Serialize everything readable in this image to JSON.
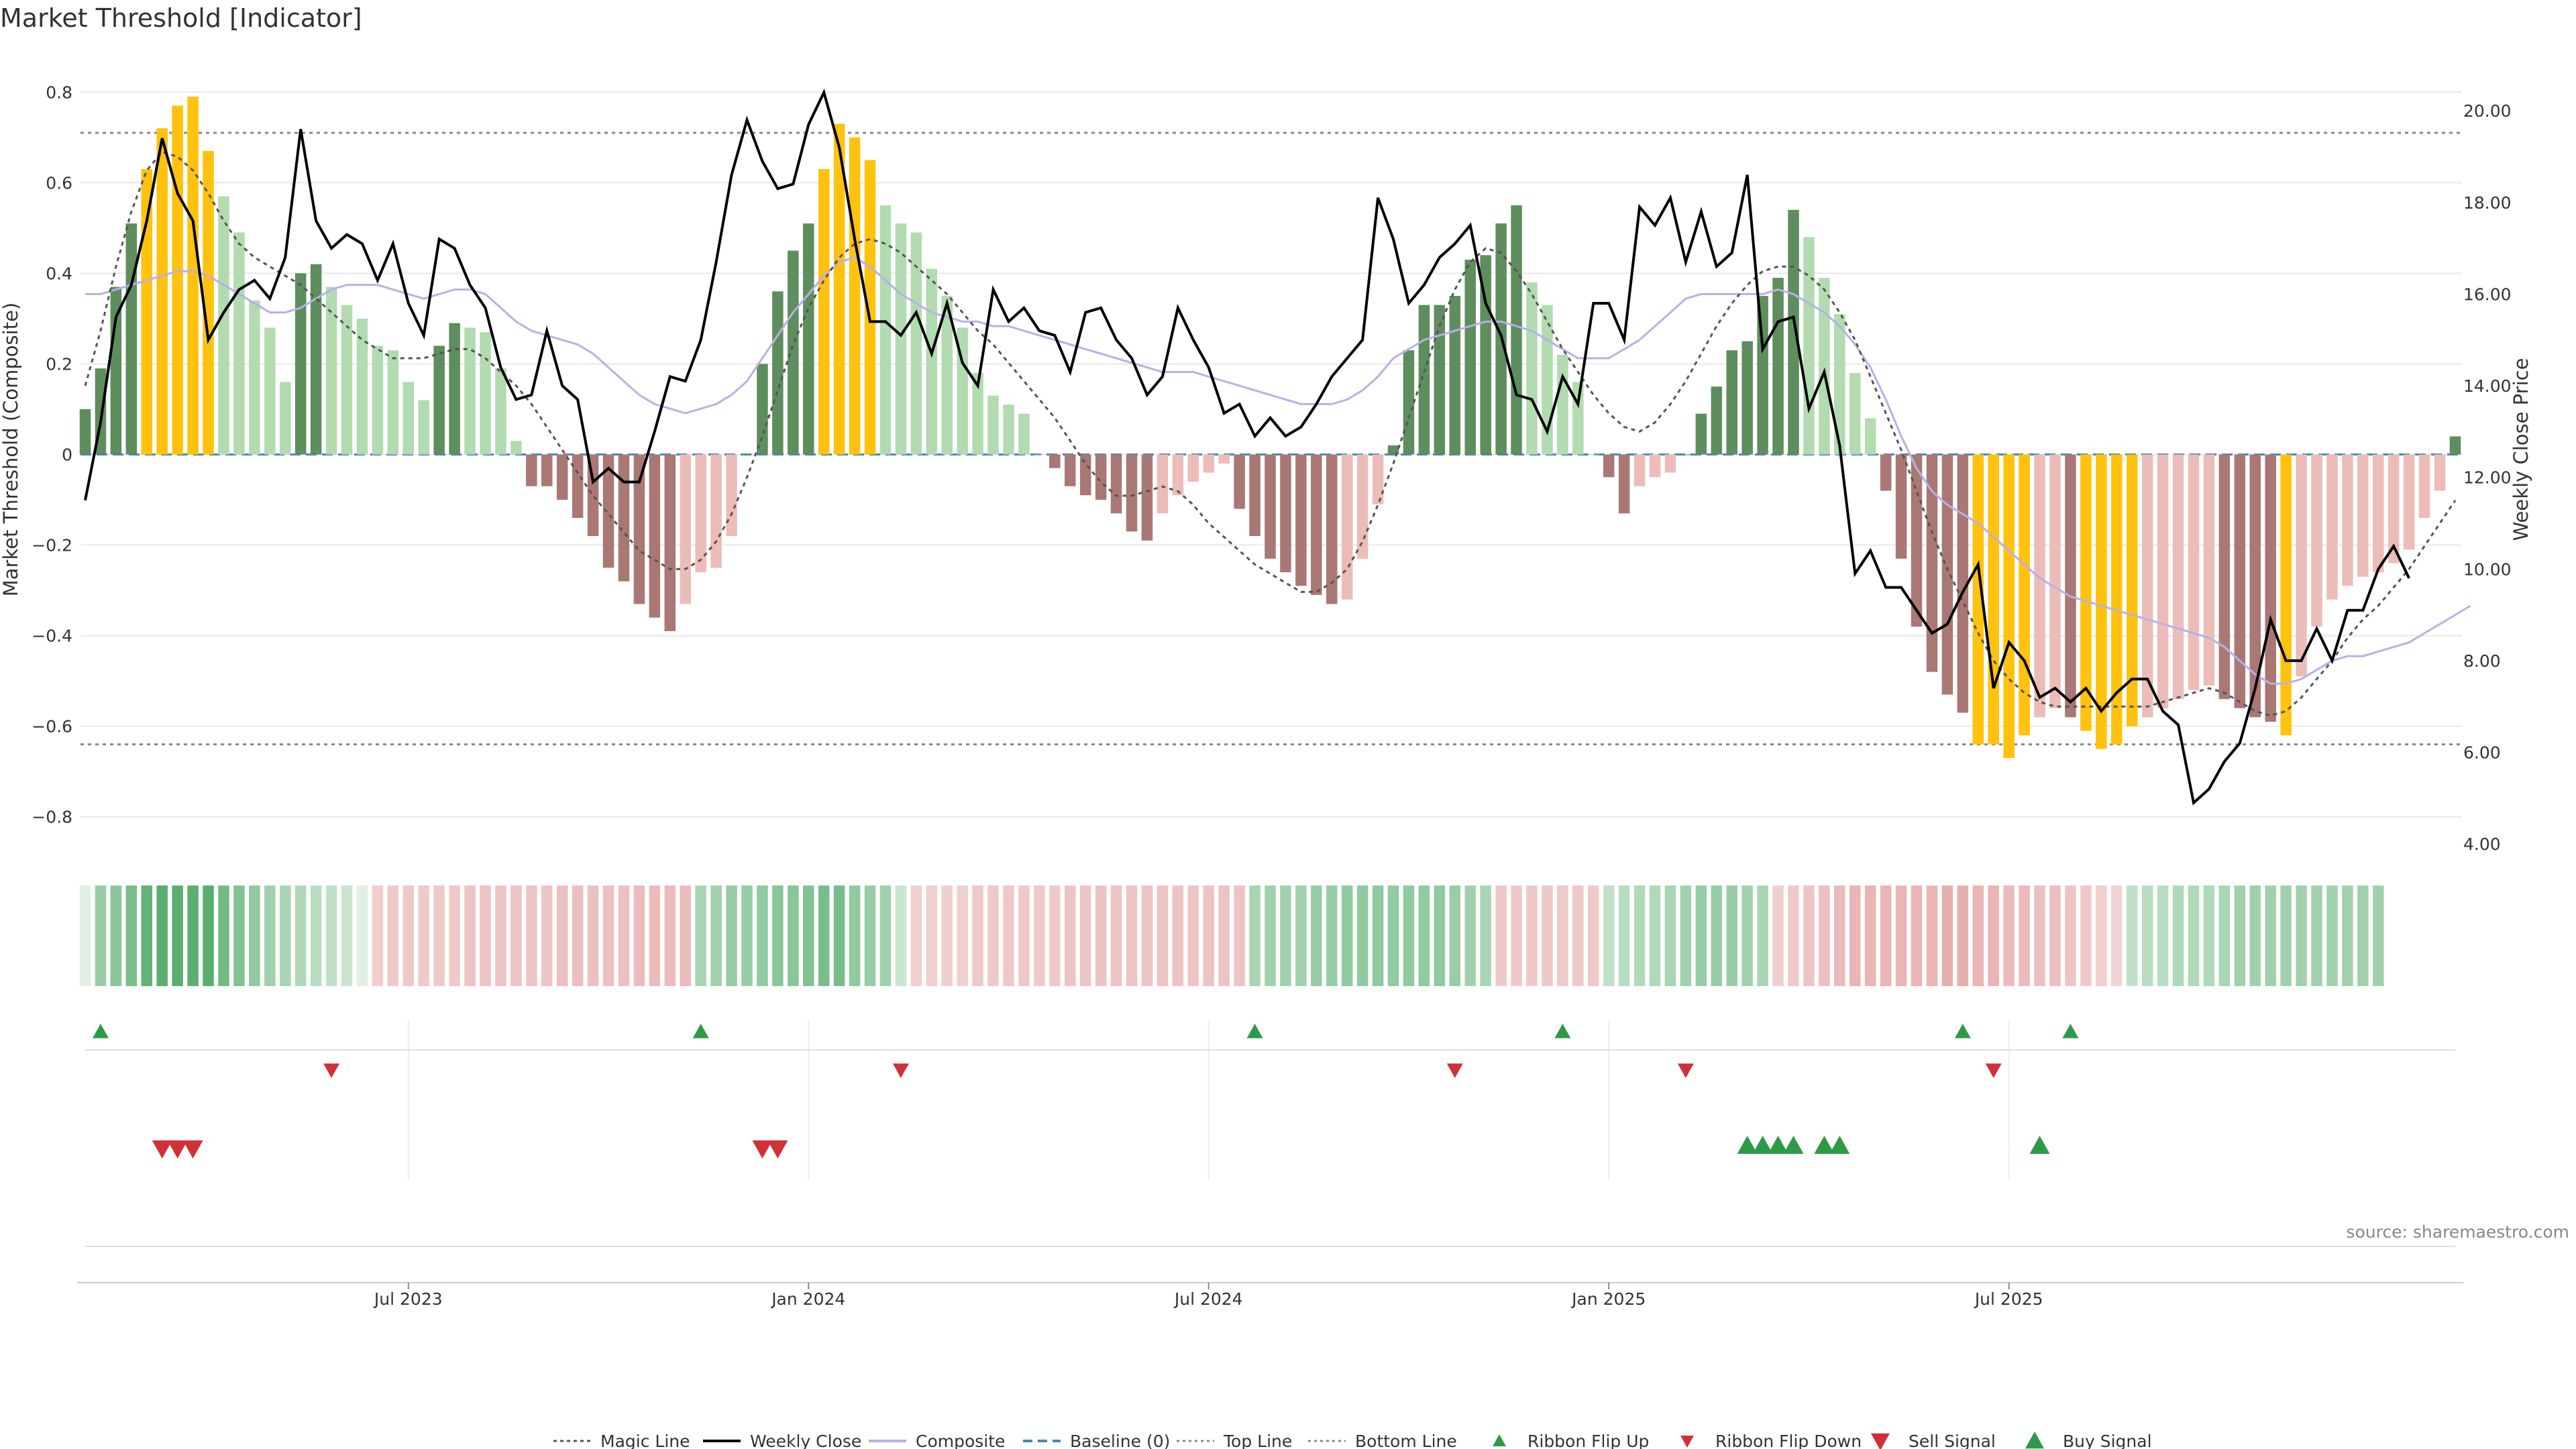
{
  "chart_data": {
    "type": "bar",
    "title": "Market Threshold [Indicator]",
    "ylabel_left": "Market Threshold (Composite)",
    "ylabel_right": "Weekly Close Price",
    "source_text": "source: sharemaestro.com",
    "left_ylim": [
      -0.87,
      0.87
    ],
    "right_ylim": [
      3.9,
      21.1
    ],
    "left_ticks": [
      "0.8",
      "0.6",
      "0.4",
      "0.2",
      "0",
      "−0.2",
      "−0.4",
      "−0.6",
      "−0.8"
    ],
    "right_ticks": [
      "20.00",
      "18.00",
      "16.00",
      "14.00",
      "12.00",
      "10.00",
      "8.00",
      "6.00",
      "4.00"
    ],
    "x_ticks": [
      {
        "label": "Jul 2023",
        "week": 21
      },
      {
        "label": "Jan 2024",
        "week": 47
      },
      {
        "label": "Jul 2024",
        "week": 73
      },
      {
        "label": "Jan 2025",
        "week": 99
      },
      {
        "label": "Jul 2025",
        "week": 125
      }
    ],
    "top_line": 0.71,
    "bottom_line": -0.64,
    "baseline": 0,
    "composite_values": [
      0.1,
      0.19,
      0.37,
      0.51,
      0.63,
      0.72,
      0.77,
      0.79,
      0.67,
      0.57,
      0.49,
      0.34,
      0.28,
      0.16,
      0.4,
      0.42,
      0.37,
      0.33,
      0.3,
      0.24,
      0.23,
      0.16,
      0.12,
      0.24,
      0.29,
      0.28,
      0.27,
      0.19,
      0.03,
      -0.07,
      -0.07,
      -0.1,
      -0.14,
      -0.18,
      -0.25,
      -0.28,
      -0.33,
      -0.36,
      -0.39,
      -0.33,
      -0.26,
      -0.25,
      -0.18,
      0.0,
      0.2,
      0.36,
      0.45,
      0.51,
      0.63,
      0.73,
      0.7,
      0.65,
      0.55,
      0.51,
      0.49,
      0.41,
      0.35,
      0.28,
      0.18,
      0.13,
      0.11,
      0.09,
      0.0,
      -0.03,
      -0.07,
      -0.09,
      -0.1,
      -0.13,
      -0.17,
      -0.19,
      -0.13,
      -0.09,
      -0.06,
      -0.04,
      -0.02,
      -0.12,
      -0.18,
      -0.23,
      -0.26,
      -0.29,
      -0.31,
      -0.33,
      -0.32,
      -0.23,
      -0.11,
      0.02,
      0.23,
      0.33,
      0.33,
      0.35,
      0.43,
      0.44,
      0.51,
      0.55,
      0.38,
      0.33,
      0.22,
      0.16,
      0.0,
      -0.05,
      -0.13,
      -0.07,
      -0.05,
      -0.04,
      0.0,
      0.09,
      0.15,
      0.23,
      0.25,
      0.35,
      0.39,
      0.54,
      0.48,
      0.39,
      0.31,
      0.18,
      0.08,
      -0.08,
      -0.23,
      -0.38,
      -0.48,
      -0.53,
      -0.57,
      -0.64,
      -0.64,
      -0.67,
      -0.62,
      -0.58,
      -0.56,
      -0.58,
      -0.61,
      -0.65,
      -0.64,
      -0.6,
      -0.58,
      -0.56,
      -0.54,
      -0.52,
      -0.51,
      -0.54,
      -0.56,
      -0.58,
      -0.59,
      -0.62,
      -0.49,
      -0.38,
      -0.32,
      -0.29,
      -0.27,
      -0.26,
      -0.24,
      -0.21,
      -0.14,
      -0.08,
      0.04
    ],
    "weekly_close": [
      11.5,
      13.2,
      15.5,
      16.2,
      17.6,
      19.4,
      18.2,
      17.6,
      15.0,
      15.6,
      16.1,
      16.3,
      15.9,
      16.8,
      19.6,
      17.6,
      17.0,
      17.3,
      17.1,
      16.3,
      17.1,
      15.8,
      15.1,
      17.2,
      17.0,
      16.2,
      15.7,
      14.4,
      13.7,
      13.8,
      15.2,
      14.0,
      13.7,
      11.9,
      12.2,
      11.9,
      11.9,
      13.0,
      14.2,
      14.1,
      15.0,
      16.7,
      18.6,
      19.8,
      18.9,
      18.3,
      18.4,
      19.7,
      20.4,
      19.2,
      17.2,
      15.4,
      15.4,
      15.1,
      15.6,
      14.7,
      15.8,
      14.5,
      14.0,
      16.1,
      15.4,
      15.7,
      15.2,
      15.1,
      14.3,
      15.6,
      15.7,
      15.0,
      14.6,
      13.8,
      14.2,
      15.7,
      15.0,
      14.4,
      13.4,
      13.6,
      12.9,
      13.3,
      12.9,
      13.1,
      13.6,
      14.2,
      14.6,
      15.0,
      18.1,
      17.2,
      15.8,
      16.2,
      16.8,
      17.1,
      17.5,
      15.8,
      15.1,
      13.8,
      13.7,
      13.0,
      14.2,
      13.6,
      15.8,
      15.8,
      15.0,
      17.9,
      17.5,
      18.1,
      16.7,
      17.8,
      16.6,
      16.9,
      18.6,
      14.8,
      15.4,
      15.5,
      13.5,
      14.3,
      12.7,
      9.9,
      10.4,
      9.6,
      9.6,
      9.1,
      8.6,
      8.8,
      9.5,
      10.1,
      7.4,
      8.4,
      8.0,
      7.2,
      7.4,
      7.1,
      7.4,
      6.9,
      7.3,
      7.6,
      7.6,
      6.9,
      6.6,
      4.9,
      5.2,
      5.8,
      6.2,
      7.4,
      8.9,
      8.0,
      8.0,
      8.7,
      8.0,
      9.1,
      9.1,
      10.0,
      10.5,
      9.8
    ],
    "magic_line": [
      14.0,
      15.2,
      16.6,
      17.8,
      18.7,
      19.1,
      19.0,
      18.7,
      18.2,
      17.6,
      17.1,
      16.8,
      16.6,
      16.4,
      16.2,
      15.9,
      15.6,
      15.3,
      15.0,
      14.8,
      14.6,
      14.6,
      14.6,
      14.7,
      14.8,
      14.8,
      14.6,
      14.3,
      14.0,
      13.6,
      13.1,
      12.6,
      12.1,
      11.6,
      11.2,
      10.8,
      10.4,
      10.2,
      10.0,
      10.0,
      10.2,
      10.6,
      11.2,
      12.0,
      12.9,
      13.9,
      14.9,
      15.7,
      16.3,
      16.8,
      17.1,
      17.2,
      17.1,
      16.9,
      16.6,
      16.3,
      16.0,
      15.6,
      15.2,
      14.9,
      14.5,
      14.1,
      13.7,
      13.3,
      12.8,
      12.3,
      11.9,
      11.6,
      11.6,
      11.7,
      11.8,
      11.7,
      11.4,
      11.0,
      10.7,
      10.4,
      10.1,
      9.9,
      9.7,
      9.5,
      9.5,
      9.7,
      10.0,
      10.6,
      11.4,
      12.3,
      13.3,
      14.3,
      15.3,
      16.1,
      16.7,
      17.0,
      16.9,
      16.5,
      16.0,
      15.4,
      14.8,
      14.3,
      13.8,
      13.4,
      13.1,
      13.0,
      13.2,
      13.6,
      14.1,
      14.7,
      15.3,
      15.8,
      16.2,
      16.5,
      16.6,
      16.6,
      16.4,
      16.1,
      15.6,
      15.0,
      14.2,
      13.4,
      12.6,
      11.7,
      10.8,
      10.0,
      9.3,
      8.6,
      8.0,
      7.6,
      7.3,
      7.1,
      7.0,
      7.0,
      7.0,
      7.0,
      7.0,
      7.0,
      7.0,
      7.1,
      7.2,
      7.3,
      7.4,
      7.3,
      7.1,
      6.9,
      6.8,
      6.9,
      7.2,
      7.6,
      8.0,
      8.5,
      8.9,
      9.2,
      9.6,
      10.0,
      10.5,
      11.0,
      11.5
    ],
    "composite_line": [
      16.0,
      16.0,
      16.1,
      16.2,
      16.3,
      16.4,
      16.5,
      16.5,
      16.4,
      16.2,
      16.0,
      15.8,
      15.6,
      15.6,
      15.7,
      15.9,
      16.1,
      16.2,
      16.2,
      16.2,
      16.1,
      16.0,
      15.9,
      16.0,
      16.1,
      16.1,
      16.0,
      15.7,
      15.4,
      15.2,
      15.1,
      15.0,
      14.9,
      14.7,
      14.4,
      14.1,
      13.8,
      13.6,
      13.5,
      13.4,
      13.5,
      13.6,
      13.8,
      14.1,
      14.6,
      15.1,
      15.6,
      16.0,
      16.4,
      16.7,
      16.8,
      16.6,
      16.3,
      16.0,
      15.8,
      15.6,
      15.5,
      15.4,
      15.4,
      15.3,
      15.3,
      15.2,
      15.1,
      15.0,
      14.9,
      14.8,
      14.7,
      14.6,
      14.5,
      14.4,
      14.3,
      14.3,
      14.3,
      14.2,
      14.1,
      14.0,
      13.9,
      13.8,
      13.7,
      13.6,
      13.6,
      13.6,
      13.7,
      13.9,
      14.2,
      14.6,
      14.8,
      15.0,
      15.1,
      15.2,
      15.3,
      15.4,
      15.4,
      15.3,
      15.2,
      15.0,
      14.8,
      14.6,
      14.6,
      14.6,
      14.8,
      15.0,
      15.3,
      15.6,
      15.9,
      16.0,
      16.0,
      16.0,
      16.0,
      16.0,
      16.1,
      16.0,
      15.8,
      15.6,
      15.3,
      14.9,
      14.4,
      13.7,
      12.9,
      12.2,
      11.7,
      11.4,
      11.2,
      11.0,
      10.7,
      10.4,
      10.1,
      9.8,
      9.6,
      9.4,
      9.3,
      9.2,
      9.1,
      9.0,
      8.9,
      8.8,
      8.7,
      8.6,
      8.5,
      8.3,
      8.0,
      7.7,
      7.5,
      7.5,
      7.6,
      7.8,
      8.0,
      8.1,
      8.1,
      8.2,
      8.3,
      8.4,
      8.6,
      8.8,
      9.0,
      9.2
    ],
    "ribbon": [
      0.0,
      0.45,
      0.55,
      0.65,
      0.8,
      0.85,
      0.85,
      0.85,
      0.85,
      0.7,
      0.6,
      0.5,
      0.4,
      0.35,
      0.3,
      0.25,
      0.2,
      0.15,
      0.0,
      -0.2,
      -0.25,
      -0.25,
      -0.25,
      -0.25,
      -0.25,
      -0.3,
      -0.3,
      -0.3,
      -0.3,
      -0.3,
      -0.3,
      -0.35,
      -0.35,
      -0.35,
      -0.35,
      -0.35,
      -0.4,
      -0.4,
      -0.4,
      -0.4,
      0.35,
      0.4,
      0.45,
      0.45,
      0.5,
      0.55,
      0.55,
      0.6,
      0.65,
      0.65,
      0.5,
      0.45,
      0.4,
      0.15,
      -0.2,
      -0.2,
      -0.2,
      -0.2,
      -0.25,
      -0.25,
      -0.25,
      -0.25,
      -0.25,
      -0.25,
      -0.3,
      -0.3,
      -0.3,
      -0.3,
      -0.3,
      -0.3,
      -0.3,
      -0.3,
      -0.3,
      -0.3,
      -0.3,
      -0.3,
      0.35,
      0.4,
      0.4,
      0.4,
      0.45,
      0.45,
      0.5,
      0.5,
      0.5,
      0.5,
      0.5,
      0.5,
      0.5,
      0.45,
      0.4,
      0.35,
      -0.25,
      -0.25,
      -0.25,
      -0.25,
      -0.25,
      -0.25,
      -0.25,
      0.2,
      0.25,
      0.3,
      0.3,
      0.35,
      0.4,
      0.45,
      0.45,
      0.45,
      0.4,
      0.35,
      -0.2,
      -0.25,
      -0.3,
      -0.35,
      -0.4,
      -0.45,
      -0.45,
      -0.45,
      -0.45,
      -0.45,
      -0.45,
      -0.5,
      -0.5,
      -0.45,
      -0.45,
      -0.4,
      -0.4,
      -0.35,
      -0.35,
      -0.3,
      -0.25,
      -0.2,
      -0.15,
      0.2,
      0.25,
      0.25,
      0.3,
      0.3,
      0.3,
      0.35,
      0.4,
      0.4,
      0.4,
      0.4,
      0.4,
      0.4,
      0.4,
      0.4,
      0.4,
      0.4
    ],
    "ribbon_flip_up": [
      1,
      40,
      76,
      96,
      122,
      129
    ],
    "ribbon_flip_down": [
      16,
      53,
      89,
      104,
      124
    ],
    "sell_signal": [
      5,
      6,
      7,
      44,
      45
    ],
    "buy_signal": [
      108,
      109,
      110,
      111,
      113,
      114,
      127
    ],
    "legend": [
      {
        "label": "Magic Line",
        "style": "dotted-line"
      },
      {
        "label": "Weekly Close",
        "style": "solid-line"
      },
      {
        "label": "Composite",
        "style": "lavender-line"
      },
      {
        "label": "Baseline (0)",
        "style": "dashed-line"
      },
      {
        "label": "Top Line",
        "style": "gray-dotted-line"
      },
      {
        "label": "Bottom Line",
        "style": "gray-dotted-line"
      },
      {
        "label": "Ribbon Flip Up",
        "style": "green-triangle-up"
      },
      {
        "label": "Ribbon Flip Down",
        "style": "red-triangle-down"
      },
      {
        "label": "Sell Signal",
        "style": "red-triangle-down-large"
      },
      {
        "label": "Buy Signal",
        "style": "green-triangle-up-large"
      }
    ],
    "colors": {
      "dark_green": "#5e8d5e",
      "light_green": "#b2dbb0",
      "gold": "#ffc20e",
      "dark_red": "#a97874",
      "light_red": "#ecbdb8",
      "weekly_close": "#000000",
      "composite": "#b8b0e6",
      "magic_line": "#555555",
      "baseline": "#4a87b5",
      "flip_up": "#2e9a48",
      "flip_down": "#d03037",
      "grid": "#e8e8e8"
    }
  }
}
